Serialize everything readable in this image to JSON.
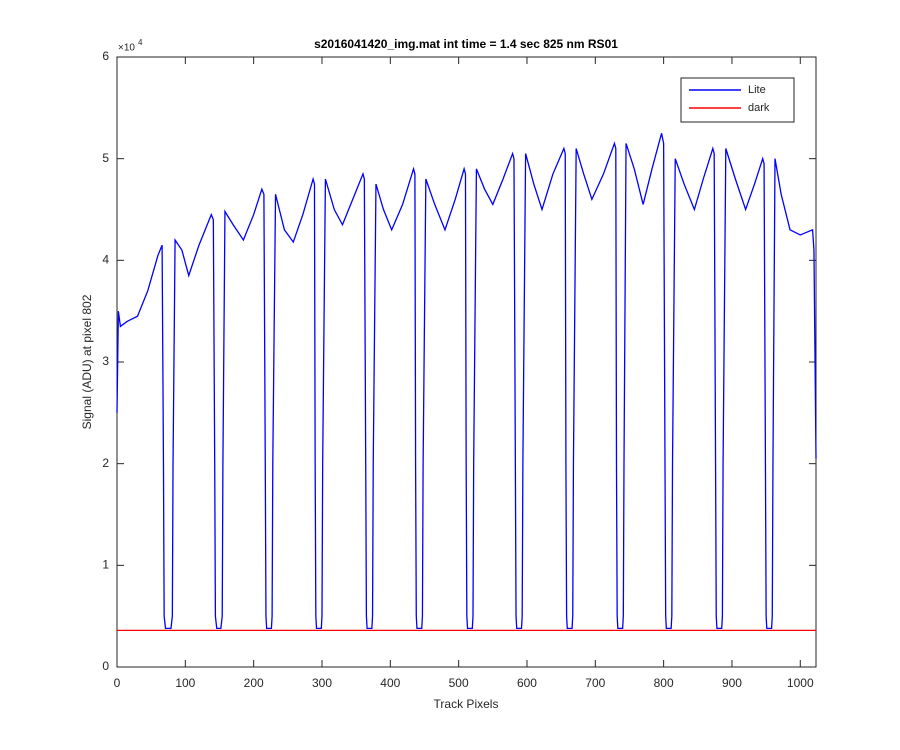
{
  "chart_data": {
    "type": "line",
    "title": "s2016041420_img.mat int time = 1.4 sec  825 nm RS01",
    "x_label": "Track Pixels",
    "y_label": "Signal (ADU) at pixel 802",
    "y_multiplier": {
      "base": "×10",
      "exponent": "4"
    },
    "xlim": [
      0,
      1023
    ],
    "ylim": [
      0,
      60000
    ],
    "xticks": [
      0,
      100,
      200,
      300,
      400,
      500,
      600,
      700,
      800,
      900,
      1000
    ],
    "yticks": [
      {
        "value": 0,
        "label": "0"
      },
      {
        "value": 10000,
        "label": "1"
      },
      {
        "value": 20000,
        "label": "2"
      },
      {
        "value": 30000,
        "label": "3"
      },
      {
        "value": 40000,
        "label": "4"
      },
      {
        "value": 50000,
        "label": "5"
      },
      {
        "value": 60000,
        "label": "6"
      }
    ],
    "legend": "upper right",
    "series": [
      {
        "name": "Lite",
        "color": "#0000ff",
        "x": [
          0,
          2,
          5,
          15,
          30,
          45,
          60,
          66,
          68,
          69,
          71,
          79,
          81,
          82,
          85,
          95,
          105,
          120,
          138,
          141,
          143,
          144,
          146,
          152,
          154,
          155,
          158,
          170,
          185,
          200,
          212,
          215,
          217,
          218,
          219,
          226,
          227,
          228,
          232,
          245,
          258,
          272,
          287,
          289,
          290,
          291,
          292,
          299,
          300,
          301,
          305,
          318,
          330,
          345,
          360,
          362,
          364,
          365,
          366,
          373,
          374,
          375,
          379,
          390,
          402,
          418,
          434,
          436,
          437,
          438,
          439,
          446,
          447,
          448,
          452,
          465,
          480,
          495,
          508,
          510,
          511,
          512,
          513,
          520,
          521,
          522,
          526,
          538,
          550,
          565,
          579,
          581,
          583,
          584,
          585,
          592,
          593,
          594,
          598,
          610,
          622,
          638,
          654,
          656,
          657,
          658,
          659,
          666,
          667,
          668,
          672,
          683,
          695,
          712,
          728,
          730,
          731,
          732,
          733,
          740,
          741,
          742,
          745,
          757,
          770,
          783,
          797,
          800,
          802,
          803,
          804,
          811,
          812,
          813,
          817,
          830,
          845,
          858,
          872,
          874,
          876,
          877,
          878,
          885,
          886,
          887,
          891,
          905,
          920,
          933,
          945,
          947,
          949,
          950,
          951,
          958,
          959,
          960,
          963,
          972,
          985,
          1000,
          1018,
          1020,
          1023
        ],
        "values": [
          25000,
          35000,
          33500,
          34000,
          34500,
          37000,
          40500,
          41500,
          20000,
          5000,
          3800,
          3800,
          5000,
          20000,
          42000,
          41000,
          38500,
          41500,
          44500,
          44000,
          20000,
          5000,
          3800,
          3800,
          5000,
          20000,
          44800,
          43500,
          42000,
          44500,
          47000,
          46500,
          20000,
          5000,
          3800,
          3800,
          5000,
          20000,
          46500,
          43000,
          41800,
          44500,
          48000,
          47500,
          20000,
          5000,
          3800,
          3800,
          5000,
          20000,
          48000,
          45000,
          43500,
          46000,
          48500,
          48000,
          20000,
          5000,
          3800,
          3800,
          5000,
          20000,
          47500,
          45000,
          43000,
          45500,
          49000,
          48500,
          20000,
          5000,
          3800,
          3800,
          5000,
          20000,
          48000,
          45500,
          43000,
          46000,
          49000,
          48500,
          20000,
          5000,
          3800,
          3800,
          5000,
          20000,
          49000,
          47000,
          45500,
          48000,
          50500,
          50000,
          20000,
          5000,
          3800,
          3800,
          5000,
          20000,
          50500,
          47500,
          45000,
          48500,
          51000,
          50500,
          20000,
          5000,
          3800,
          3800,
          5000,
          20000,
          51000,
          48500,
          46000,
          48500,
          51500,
          51000,
          20000,
          5000,
          3800,
          3800,
          5000,
          20000,
          51500,
          49000,
          45500,
          49000,
          52500,
          51500,
          20000,
          5000,
          3800,
          3800,
          5000,
          20000,
          50000,
          47500,
          45000,
          48000,
          51000,
          50500,
          20000,
          5000,
          3800,
          3800,
          5000,
          20000,
          51000,
          48000,
          45000,
          47500,
          50000,
          49500,
          20000,
          5000,
          3800,
          3800,
          5000,
          20000,
          50000,
          46500,
          43000,
          42500,
          43000,
          41000,
          20500
        ]
      },
      {
        "name": "dark",
        "color": "#ff0000",
        "x": [
          0,
          1023
        ],
        "values": [
          3600,
          3600
        ]
      }
    ]
  }
}
